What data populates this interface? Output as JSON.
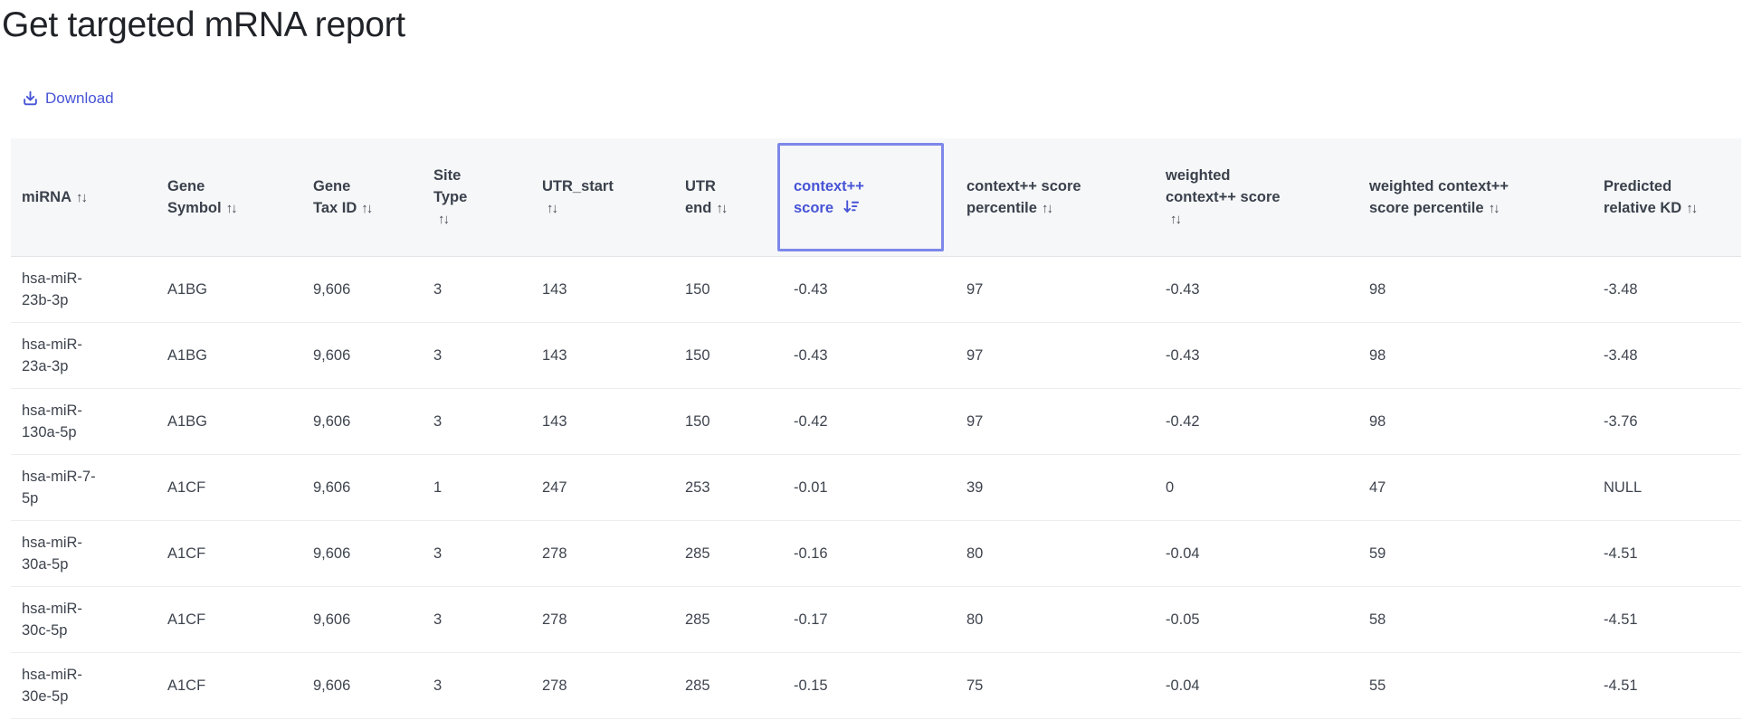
{
  "page": {
    "title": "Get targeted mRNA report"
  },
  "toolbar": {
    "download_label": "Download"
  },
  "icons": {
    "download": "download-icon",
    "sort_both": "↑↓",
    "sort_descending": "arrow-down-with-bars"
  },
  "colors": {
    "accent": "#4754d6",
    "active_column_border": "#7d88ea",
    "header_background": "#f6f7f8",
    "header_text": "#3a414c",
    "cell_text": "#3e444e",
    "row_divider": "#ebedef"
  },
  "table": {
    "columns": [
      {
        "key": "mirna",
        "label": "miRNA",
        "sort": "both",
        "active": false
      },
      {
        "key": "gene-symbol",
        "label": "Gene\nSymbol",
        "sort": "both",
        "active": false
      },
      {
        "key": "gene-tax-id",
        "label": "Gene\nTax ID",
        "sort": "both",
        "active": false
      },
      {
        "key": "site-type",
        "label": "Site\nType\n",
        "sort": "both",
        "active": false
      },
      {
        "key": "utr-start",
        "label": "UTR_start\n",
        "sort": "both",
        "active": false
      },
      {
        "key": "utr-end",
        "label": "UTR\nend",
        "sort": "both",
        "active": false
      },
      {
        "key": "context-score",
        "label": "context++\nscore",
        "sort": "desc",
        "active": true
      },
      {
        "key": "context-score-percentile",
        "label": "context++ score\npercentile",
        "sort": "both",
        "active": false
      },
      {
        "key": "weighted-context-score",
        "label": "weighted\ncontext++ score\n",
        "sort": "both",
        "active": false
      },
      {
        "key": "weighted-context-score-percentile",
        "label": "weighted context++\nscore percentile",
        "sort": "both",
        "active": false
      },
      {
        "key": "predicted-relative-kd",
        "label": "Predicted\nrelative KD",
        "sort": "both",
        "active": false
      }
    ],
    "rows": [
      [
        "hsa-miR-23b-3p",
        "A1BG",
        "9,606",
        "3",
        "143",
        "150",
        "-0.43",
        "97",
        "-0.43",
        "98",
        "-3.48"
      ],
      [
        "hsa-miR-23a-3p",
        "A1BG",
        "9,606",
        "3",
        "143",
        "150",
        "-0.43",
        "97",
        "-0.43",
        "98",
        "-3.48"
      ],
      [
        "hsa-miR-130a-5p",
        "A1BG",
        "9,606",
        "3",
        "143",
        "150",
        "-0.42",
        "97",
        "-0.42",
        "98",
        "-3.76"
      ],
      [
        "hsa-miR-7-5p",
        "A1CF",
        "9,606",
        "1",
        "247",
        "253",
        "-0.01",
        "39",
        "0",
        "47",
        "NULL"
      ],
      [
        "hsa-miR-30a-5p",
        "A1CF",
        "9,606",
        "3",
        "278",
        "285",
        "-0.16",
        "80",
        "-0.04",
        "59",
        "-4.51"
      ],
      [
        "hsa-miR-30c-5p",
        "A1CF",
        "9,606",
        "3",
        "278",
        "285",
        "-0.17",
        "80",
        "-0.05",
        "58",
        "-4.51"
      ],
      [
        "hsa-miR-30e-5p",
        "A1CF",
        "9,606",
        "3",
        "278",
        "285",
        "-0.15",
        "75",
        "-0.04",
        "55",
        "-4.51"
      ]
    ]
  }
}
